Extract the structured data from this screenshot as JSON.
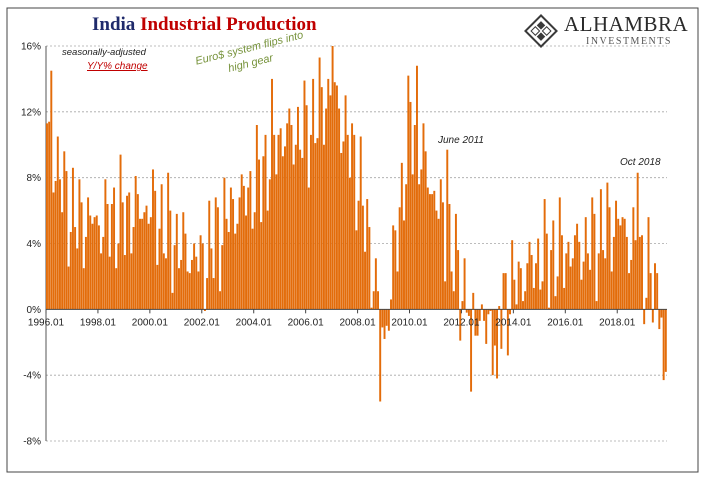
{
  "header": {
    "title_country": "India",
    "title_metric": "Industrial Production"
  },
  "logo": {
    "name": "ALHAMBRA",
    "sub": "INVESTMENTS"
  },
  "notes": {
    "seasonal": "seasonally-adjusted",
    "yoy": "Y/Y% change",
    "euro": "Euro$ system flips into high gear",
    "euro_line1": "Euro$ system flips into",
    "euro_line2": "high gear",
    "june2011": "June 2011",
    "oct2018": "Oct 2018"
  },
  "colors": {
    "bar": "#e36c0a",
    "title_blue": "#1f2a6b",
    "title_red": "#c00000",
    "note_green": "#77933c",
    "note_red": "#c00000"
  },
  "chart_data": {
    "type": "bar",
    "title": "India Industrial Production",
    "subtitle": "seasonally-adjusted Y/Y% change",
    "xlabel": "",
    "ylabel": "",
    "ylim": [
      -8,
      16
    ],
    "grid": true,
    "yticks": [
      "16%",
      "12%",
      "8%",
      "4%",
      "0%",
      "-4%",
      "-8%"
    ],
    "ytick_values": [
      16,
      12,
      8,
      4,
      0,
      -4,
      -8
    ],
    "xticks": [
      "1996.01",
      "1998.01",
      "2000.01",
      "2002.01",
      "2004.01",
      "2006.01",
      "2008.01",
      "2010.01",
      "2012.01",
      "2014.01",
      "2016.01",
      "2018.01"
    ],
    "x_start": "1996.01",
    "frequency": "monthly",
    "annual_anchors": {
      "years": [
        1996,
        1997,
        1998,
        1999,
        2000,
        2001,
        2002,
        2003,
        2004,
        2005,
        2006,
        2007,
        2008,
        2009,
        2010,
        2011,
        2012,
        2013,
        2014,
        2015,
        2016,
        2017,
        2018,
        2019
      ],
      "levels": [
        10.5,
        5.5,
        5.2,
        5.8,
        6.2,
        4.0,
        2.8,
        5.8,
        7.5,
        10.5,
        10.8,
        13.5,
        8.0,
        -2.0,
        11.5,
        6.5,
        1.2,
        -1.5,
        1.5,
        3.2,
        3.5,
        4.0,
        5.5,
        2.5
      ]
    },
    "highlights": [
      {
        "date": "1996.03",
        "value": 14.5
      },
      {
        "date": "2004.09",
        "value": 14.0
      },
      {
        "date": "2007.01",
        "value": 16.0
      },
      {
        "date": "2008.11",
        "value": -5.6
      },
      {
        "date": "2010.04",
        "value": 14.8
      },
      {
        "date": "2011.06",
        "value": 9.7
      },
      {
        "date": "2012.05",
        "value": -5.0
      },
      {
        "date": "2013.05",
        "value": -4.2
      },
      {
        "date": "2018.10",
        "value": 8.3
      },
      {
        "date": "2019.08",
        "value": -1.2
      },
      {
        "date": "2019.10",
        "value": -4.3
      },
      {
        "date": "2019.11",
        "value": -3.8
      }
    ],
    "annotations": [
      "Euro$ system flips into high gear",
      "June 2011",
      "Oct 2018"
    ]
  }
}
